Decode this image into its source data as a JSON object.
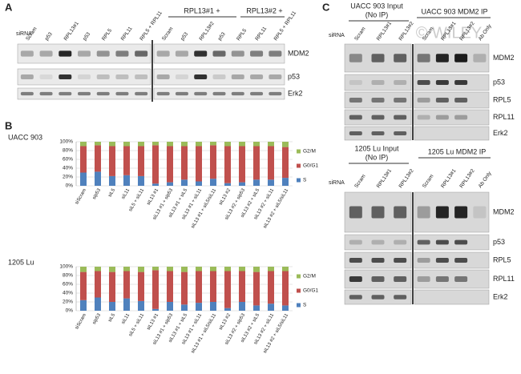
{
  "panel_a": {
    "label": "A",
    "sirna": "siRNA",
    "lanes": [
      "Scram",
      "p53",
      "RPL13#1",
      "p53",
      "RPL5",
      "RPL11",
      "RPL5 + RPL11",
      "Scram",
      "p53",
      "RPL13#2",
      "p53",
      "RPL5",
      "RPL11",
      "RPL5 + RPL11"
    ],
    "groups": [
      "RPL13#1 +",
      "RPL13#2 +"
    ],
    "rows": [
      "MDM2",
      "p53",
      "Erk2"
    ]
  },
  "panel_b": {
    "label": "B"
  },
  "chart_data": [
    {
      "type": "bar",
      "stacked": true,
      "title": "UACC 903",
      "categories": [
        "siScram",
        "sip53",
        "siL5",
        "siL11",
        "siL5 + siL11",
        "siL13 #1",
        "siL13 #1 + sip53",
        "siL13 #1 + siL5",
        "siL13 #1 + siL11",
        "siL13 #1 + siL5/siL11",
        "siL13 #2",
        "siL13 #2 + sip53",
        "siL13 #2 + siL5",
        "siL13 #2 + siL11",
        "siL13 #2 + siL5/siL11"
      ],
      "series": [
        {
          "name": "S",
          "color": "#4f81bd",
          "values": [
            30,
            32,
            22,
            24,
            22,
            5,
            8,
            14,
            10,
            16,
            6,
            8,
            14,
            14,
            18
          ]
        },
        {
          "name": "G0/G1",
          "color": "#c0504d",
          "values": [
            60,
            60,
            68,
            66,
            68,
            87,
            82,
            76,
            80,
            76,
            84,
            82,
            76,
            76,
            70
          ]
        },
        {
          "name": "G2/M",
          "color": "#9bbb59",
          "values": [
            10,
            8,
            10,
            10,
            10,
            8,
            10,
            10,
            10,
            8,
            10,
            10,
            10,
            10,
            12
          ]
        }
      ],
      "ylim": [
        0,
        100
      ],
      "yticks": [
        {
          "value": 0,
          "label": "0%"
        },
        {
          "value": 20,
          "label": "20%"
        },
        {
          "value": 40,
          "label": "40%"
        },
        {
          "value": 60,
          "label": "60%"
        },
        {
          "value": 80,
          "label": "80%"
        },
        {
          "value": 100,
          "label": "100%"
        }
      ],
      "grid": true
    },
    {
      "type": "bar",
      "stacked": true,
      "title": "1205 Lu",
      "categories": [
        "siScram",
        "sip53",
        "siL5",
        "siL11",
        "siL5 + siL11",
        "siL13 #1",
        "siL13 #1 + sip53",
        "siL13 #1 + siL5",
        "siL13 #1 + siL11",
        "siL13 #1 + siL5/siL11",
        "siL13 #2",
        "siL13 #2 + sip53",
        "siL13 #2 + siL5",
        "siL13 #2 + siL11",
        "siL13 #2 + siL5/siL11"
      ],
      "series": [
        {
          "name": "S",
          "color": "#4f81bd",
          "values": [
            24,
            30,
            20,
            28,
            22,
            4,
            20,
            14,
            18,
            20,
            6,
            20,
            12,
            16,
            12
          ]
        },
        {
          "name": "G0/G1",
          "color": "#c0504d",
          "values": [
            64,
            60,
            68,
            62,
            66,
            88,
            70,
            74,
            72,
            70,
            84,
            70,
            76,
            74,
            78
          ]
        },
        {
          "name": "G2/M",
          "color": "#9bbb59",
          "values": [
            12,
            10,
            12,
            10,
            12,
            8,
            10,
            12,
            10,
            10,
            10,
            10,
            12,
            10,
            10
          ]
        }
      ],
      "ylim": [
        0,
        100
      ],
      "yticks": [
        {
          "value": 0,
          "label": "0%"
        },
        {
          "value": 20,
          "label": "20%"
        },
        {
          "value": 40,
          "label": "40%"
        },
        {
          "value": 60,
          "label": "60%"
        },
        {
          "value": 80,
          "label": "80%"
        },
        {
          "value": 100,
          "label": "100%"
        }
      ],
      "grid": true
    }
  ],
  "panel_c": {
    "label": "C",
    "watermark": "© WILEY",
    "top": {
      "input": "UACC 903 Input",
      "input_sub": "(No IP)",
      "ip": "UACC 903 MDM2 IP",
      "sirna": "siRNA",
      "lanes": [
        "Scram",
        "RPL13#1",
        "RPL13#2",
        "Scram",
        "RPL13#1",
        "RPL13#2",
        "Ab Only"
      ],
      "rows": [
        "MDM2",
        "p53",
        "RPL5",
        "RPL11",
        "Erk2"
      ]
    },
    "bottom": {
      "input": "1205 Lu Input",
      "input_sub": "(No IP)",
      "ip": "1205 Lu MDM2 IP",
      "sirna": "siRNA",
      "lanes": [
        "Scram",
        "RPL13#1",
        "RPL13#2",
        "Scram",
        "RPL13#1",
        "RPL13#2",
        "Ab Only"
      ],
      "rows": [
        "MDM2",
        "p53",
        "RPL5",
        "RPL11",
        "Erk2"
      ]
    }
  }
}
